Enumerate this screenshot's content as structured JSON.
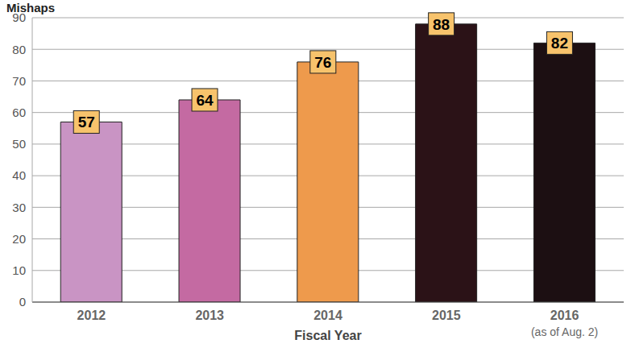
{
  "chart_data": {
    "type": "bar",
    "y_label": "Mishaps",
    "x_label": "Fiscal Year",
    "categories": [
      "2012",
      "2013",
      "2014",
      "2015",
      "2016"
    ],
    "values": [
      57,
      64,
      76,
      88,
      82
    ],
    "colors": [
      "#c994c4",
      "#c46aa2",
      "#ee9a4c",
      "#2b1217",
      "#1c0f12"
    ],
    "annotations": [
      {
        "category": "2016",
        "text": "(as of Aug. 2)"
      }
    ],
    "ylim": [
      0,
      90
    ],
    "yticks": [
      0,
      10,
      20,
      30,
      40,
      50,
      60,
      70,
      80,
      90
    ],
    "grid": true,
    "data_labels": true
  }
}
